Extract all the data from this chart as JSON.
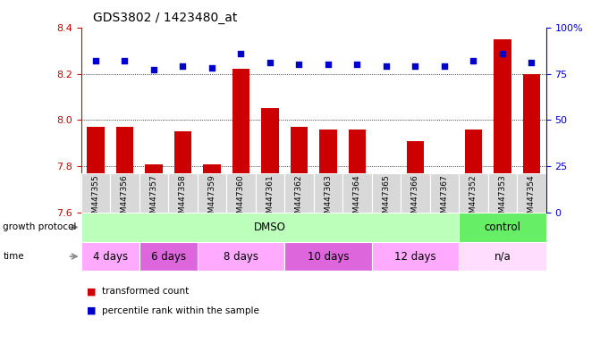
{
  "title": "GDS3802 / 1423480_at",
  "samples": [
    "GSM447355",
    "GSM447356",
    "GSM447357",
    "GSM447358",
    "GSM447359",
    "GSM447360",
    "GSM447361",
    "GSM447362",
    "GSM447363",
    "GSM447364",
    "GSM447365",
    "GSM447366",
    "GSM447367",
    "GSM447352",
    "GSM447353",
    "GSM447354"
  ],
  "red_values": [
    7.97,
    7.97,
    7.81,
    7.95,
    7.81,
    8.22,
    8.05,
    7.97,
    7.96,
    7.96,
    7.71,
    7.91,
    7.77,
    7.96,
    8.35,
    8.2
  ],
  "blue_values": [
    82,
    82,
    77,
    79,
    78,
    86,
    81,
    80,
    80,
    80,
    79,
    79,
    79,
    82,
    86,
    81
  ],
  "ylim_left": [
    7.6,
    8.4
  ],
  "ylim_right": [
    0,
    100
  ],
  "yticks_left": [
    7.6,
    7.8,
    8.0,
    8.2,
    8.4
  ],
  "yticks_right": [
    0,
    25,
    50,
    75,
    100
  ],
  "grid_lines": [
    7.8,
    8.0,
    8.2
  ],
  "bar_color": "#cc0000",
  "dot_color": "#0000cc",
  "bar_width": 0.6,
  "xticklabel_bg": "#d8d8d8",
  "protocol_groups": [
    {
      "label": "DMSO",
      "start": 0,
      "end": 13,
      "color": "#bbffbb"
    },
    {
      "label": "control",
      "start": 13,
      "end": 16,
      "color": "#66ee66"
    }
  ],
  "time_groups": [
    {
      "label": "4 days",
      "start": 0,
      "end": 2,
      "color": "#ffaaff"
    },
    {
      "label": "6 days",
      "start": 2,
      "end": 4,
      "color": "#dd66dd"
    },
    {
      "label": "8 days",
      "start": 4,
      "end": 7,
      "color": "#ffaaff"
    },
    {
      "label": "10 days",
      "start": 7,
      "end": 10,
      "color": "#dd66dd"
    },
    {
      "label": "12 days",
      "start": 10,
      "end": 13,
      "color": "#ffaaff"
    },
    {
      "label": "n/a",
      "start": 13,
      "end": 16,
      "color": "#ffddff"
    }
  ],
  "legend_items": [
    {
      "label": "transformed count",
      "color": "#cc0000"
    },
    {
      "label": "percentile rank within the sample",
      "color": "#0000cc"
    }
  ],
  "left_axis_color": "#cc0000",
  "right_axis_color": "#0000cc",
  "background_color": "#ffffff",
  "plot_bg": "#ffffff",
  "growth_protocol_label": "growth protocol",
  "time_label": "time",
  "arrow_color": "#888888"
}
